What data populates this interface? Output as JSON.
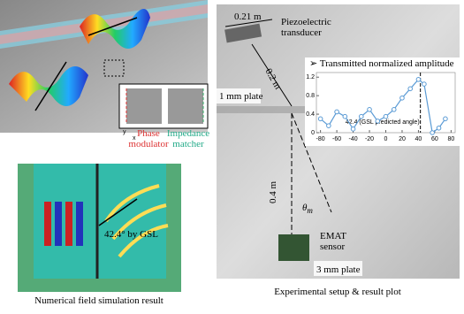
{
  "left_panel": {
    "phase_label": "Phase\nmodulator",
    "impedance_label": "Impedance\nmatcher",
    "axis_y": "y",
    "axis_x": "x"
  },
  "simulation": {
    "annotation": "42.4° by GSL",
    "caption": "Numerical field simulation result"
  },
  "experiment": {
    "distance_top": "0.21 m",
    "transducer": "Piezoelectric\ntransducer",
    "distance_mid": "0.2 m",
    "thin_plate": "1 mm plate",
    "distance_low": "0.4 m",
    "theta": "θ",
    "theta_sub": "m",
    "sensor": "EMAT\nsensor",
    "thick_plate": "3 mm plate",
    "caption": "Experimental setup & result plot"
  },
  "chart_data": {
    "type": "line",
    "legend": "➢ Transmitted normalized amplitude",
    "annotation": "42.4 (GSL predicted angle)",
    "gsl_angle": 42.4,
    "x": [
      -80,
      -70,
      -60,
      -50,
      -40,
      -30,
      -20,
      -10,
      0,
      10,
      20,
      30,
      40,
      47,
      57,
      65,
      73
    ],
    "series": [
      {
        "name": "Transmitted normalized amplitude",
        "color": "#5b9bd5",
        "values": [
          0.3,
          0.15,
          0.45,
          0.35,
          0.08,
          0.35,
          0.5,
          0.25,
          0.35,
          0.5,
          0.75,
          0.95,
          1.15,
          1.05,
          0.0,
          0.1,
          0.3
        ]
      }
    ],
    "xlim": [
      -85,
      85
    ],
    "ylim": [
      0,
      1.3
    ],
    "xticks": [
      -80,
      -60,
      -40,
      -20,
      0,
      20,
      40,
      60,
      80
    ],
    "yticks": [
      0,
      0.4,
      0.8,
      1.2
    ]
  }
}
